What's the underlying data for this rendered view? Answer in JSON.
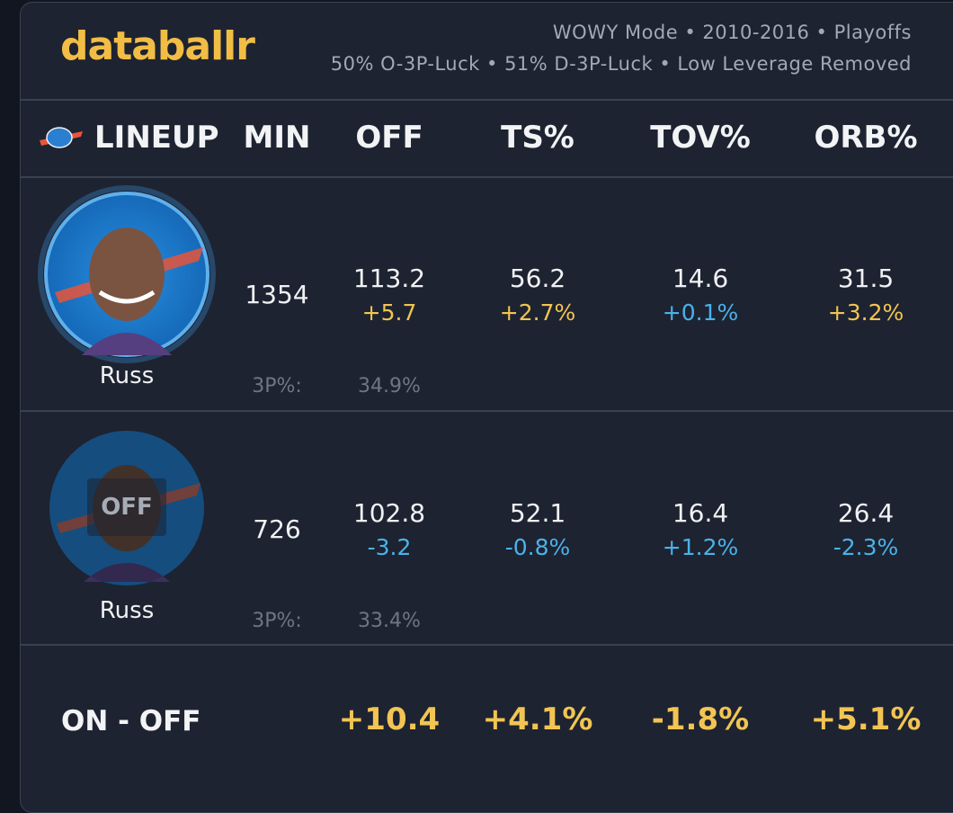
{
  "header": {
    "logo": "databallr",
    "meta": [
      "WOWY Mode • 2010-2016 • Playoffs",
      "50% O-3P-Luck • 51% D-3P-Luck • Low Leverage Removed"
    ]
  },
  "table": {
    "columns": [
      "LINEUP",
      "MIN",
      "OFF",
      "TS%",
      "TOV%",
      "ORB%"
    ],
    "rows": [
      {
        "player": "Russ",
        "min": "1354",
        "off": [
          "113.2",
          "+5.7"
        ],
        "ts": [
          "56.2",
          "+2.7%"
        ],
        "tov": [
          "14.6",
          "+0.1%"
        ],
        "orb": [
          "31.5",
          "+3.2%"
        ],
        "three_label": "3P%:",
        "three": "34.9%"
      },
      {
        "player": "Russ",
        "status": "OFF",
        "min": "726",
        "off": [
          "102.8",
          "-3.2"
        ],
        "ts": [
          "52.1",
          "-0.8%"
        ],
        "tov": [
          "16.4",
          "+1.2%"
        ],
        "orb": [
          "26.4",
          "-2.3%"
        ],
        "three_label": "3P%:",
        "three": "33.4%"
      }
    ],
    "footer": {
      "label": "ON - OFF",
      "off": "+10.4",
      "ts": "+4.1%",
      "tov": "-1.8%",
      "orb": "+5.1%"
    }
  }
}
